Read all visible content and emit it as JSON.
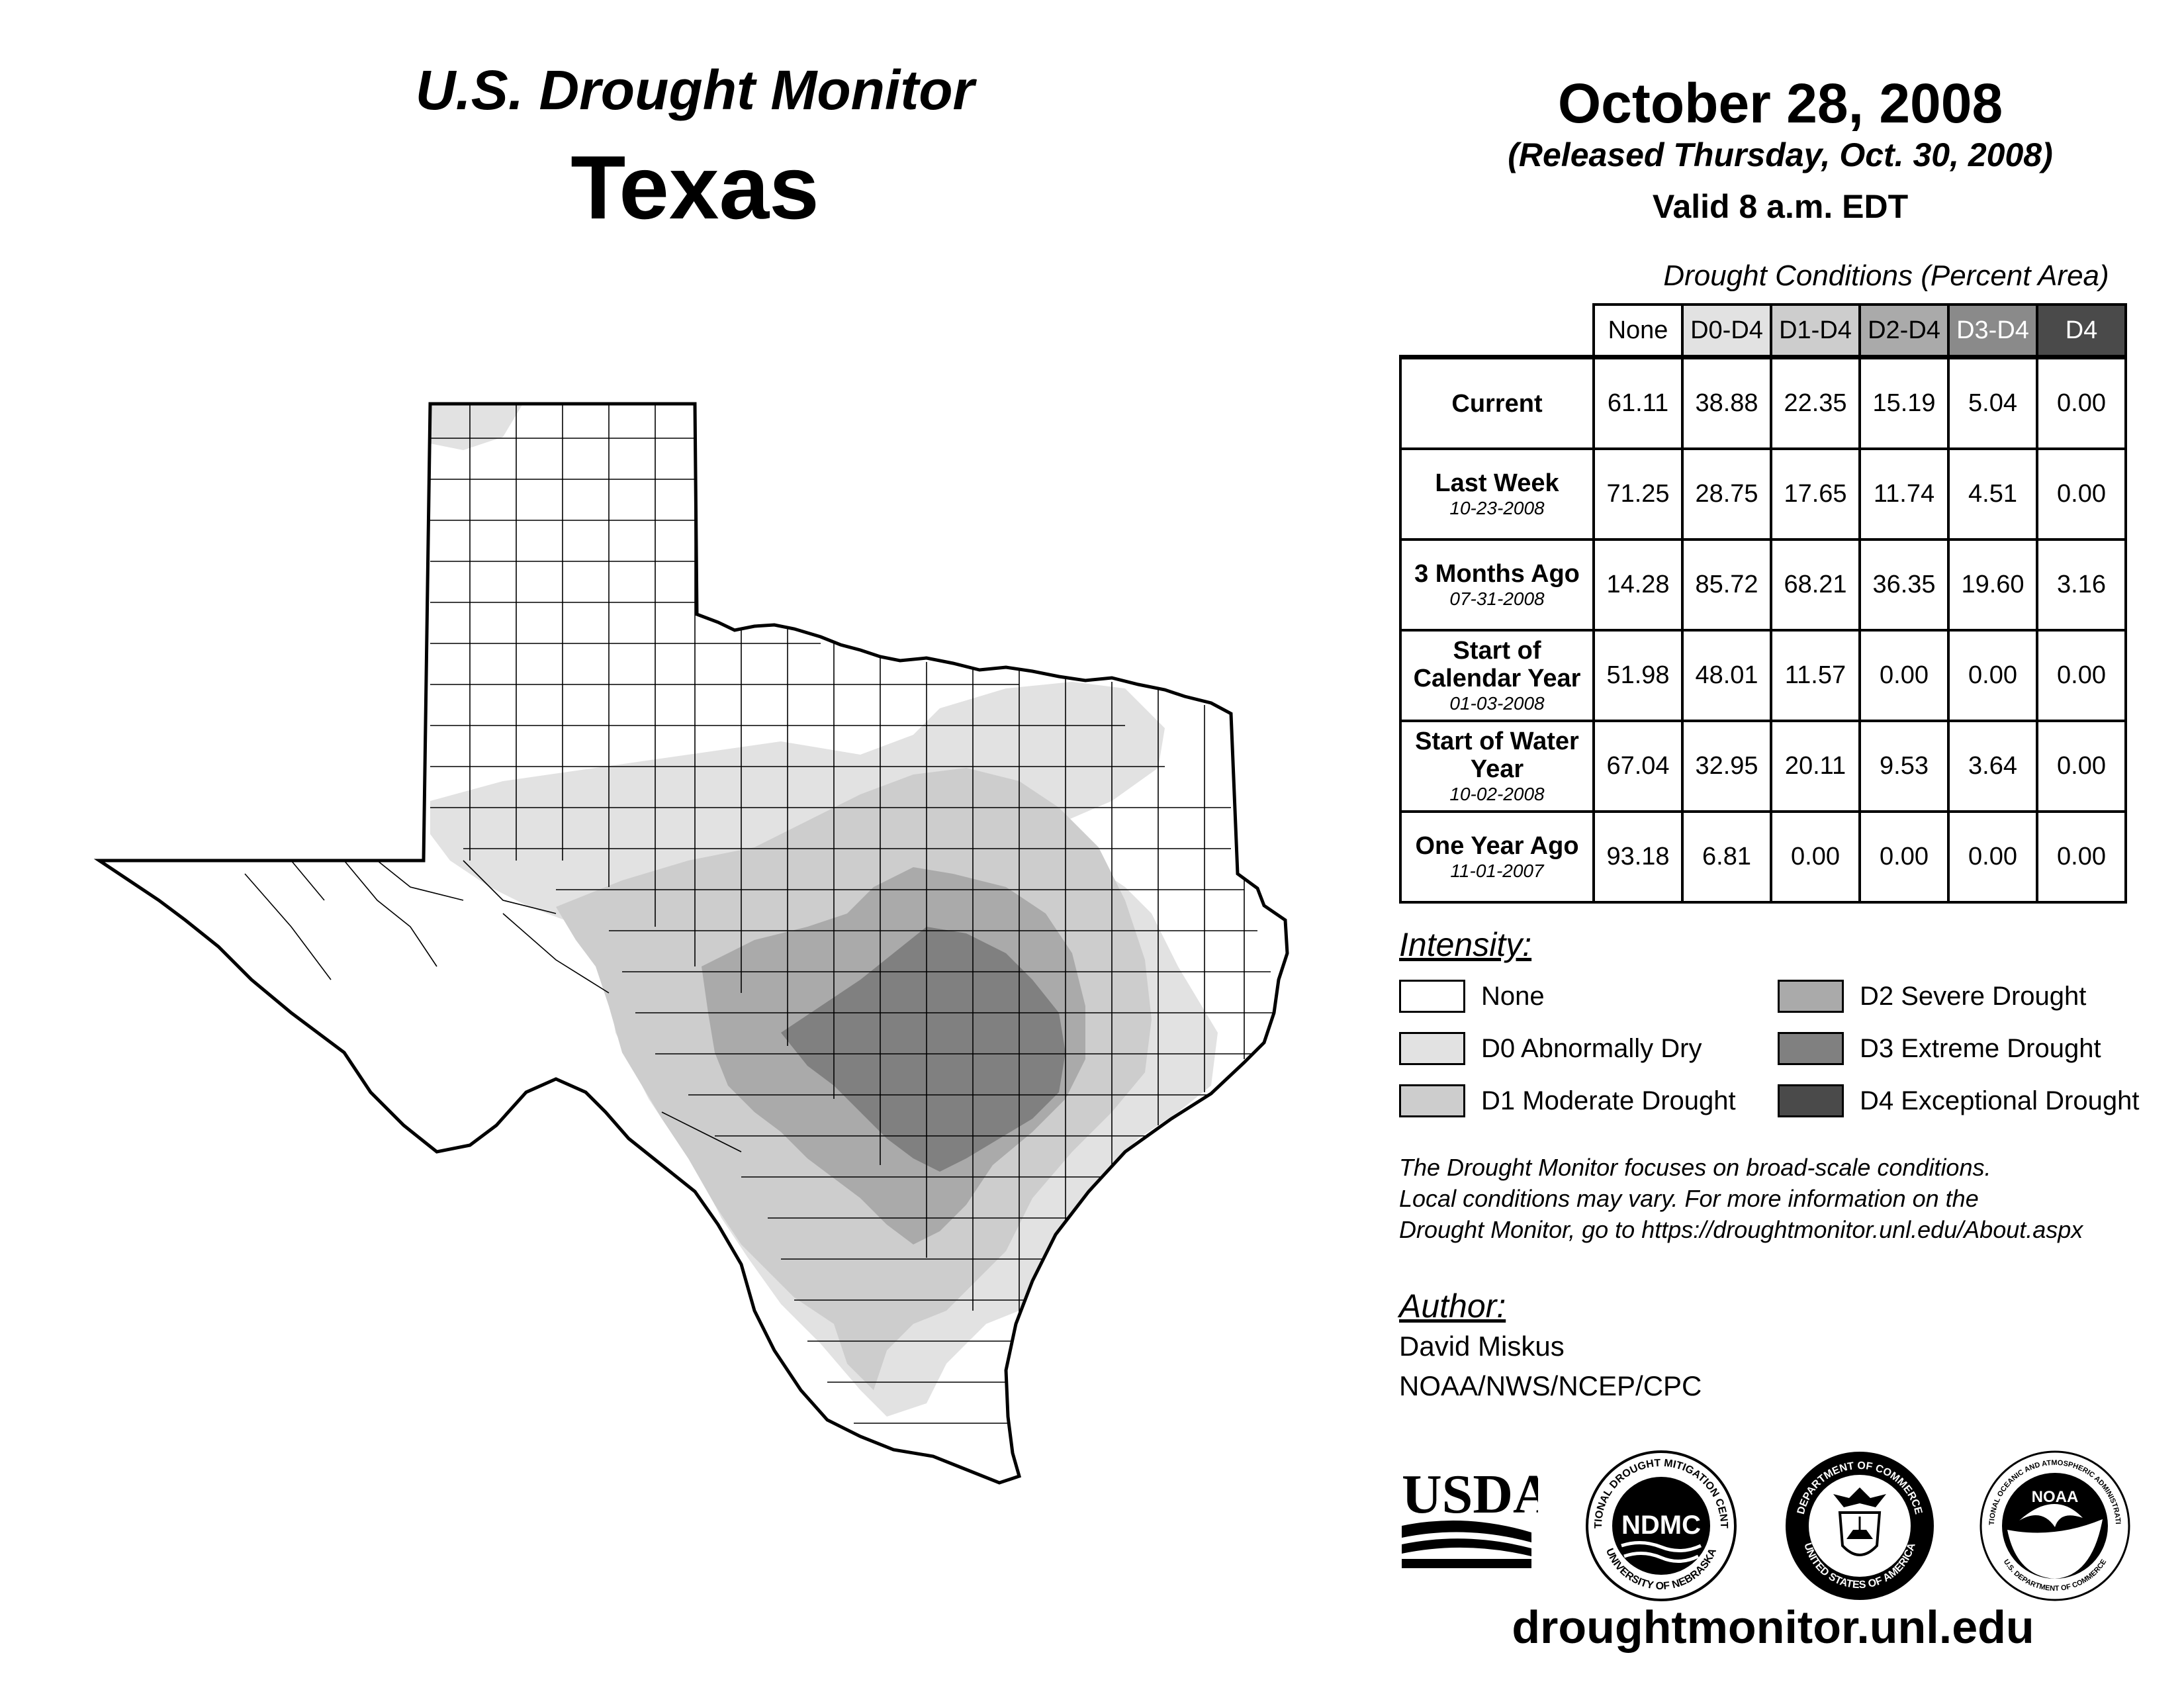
{
  "header": {
    "program": "U.S. Drought Monitor",
    "state": "Texas",
    "date": "October 28, 2008",
    "released": "(Released Thursday, Oct. 30, 2008)",
    "valid": "Valid 8 a.m. EDT"
  },
  "conditions": {
    "title": "Drought Conditions (Percent Area)",
    "columns": [
      "None",
      "D0-D4",
      "D1-D4",
      "D2-D4",
      "D3-D4",
      "D4"
    ],
    "column_colors": [
      "#ffffff",
      "#e2e2e2",
      "#cdcdcd",
      "#aaaaaa",
      "#8a8a8a",
      "#4a4a4a"
    ],
    "column_text_colors": [
      "#000000",
      "#000000",
      "#000000",
      "#000000",
      "#ffffff",
      "#ffffff"
    ],
    "rows": [
      {
        "label": "Current",
        "date": "",
        "values": [
          "61.11",
          "38.88",
          "22.35",
          "15.19",
          "5.04",
          "0.00"
        ]
      },
      {
        "label": "Last Week",
        "date": "10-23-2008",
        "values": [
          "71.25",
          "28.75",
          "17.65",
          "11.74",
          "4.51",
          "0.00"
        ]
      },
      {
        "label": "3 Months Ago",
        "date": "07-31-2008",
        "values": [
          "14.28",
          "85.72",
          "68.21",
          "36.35",
          "19.60",
          "3.16"
        ]
      },
      {
        "label": "Start of Calendar Year",
        "date": "01-03-2008",
        "values": [
          "51.98",
          "48.01",
          "11.57",
          "0.00",
          "0.00",
          "0.00"
        ]
      },
      {
        "label": "Start of Water Year",
        "date": "10-02-2008",
        "values": [
          "67.04",
          "32.95",
          "20.11",
          "9.53",
          "3.64",
          "0.00"
        ]
      },
      {
        "label": "One Year Ago",
        "date": "11-01-2007",
        "values": [
          "93.18",
          "6.81",
          "0.00",
          "0.00",
          "0.00",
          "0.00"
        ]
      }
    ]
  },
  "intensity": {
    "title": "Intensity:",
    "items": [
      {
        "label": "None",
        "color": "#ffffff"
      },
      {
        "label": "D0 Abnormally Dry",
        "color": "#e2e2e2"
      },
      {
        "label": "D1 Moderate Drought",
        "color": "#cdcdcd"
      },
      {
        "label": "D2 Severe Drought",
        "color": "#aaaaaa"
      },
      {
        "label": "D3 Extreme Drought",
        "color": "#808080"
      },
      {
        "label": "D4 Exceptional Drought",
        "color": "#4a4a4a"
      }
    ]
  },
  "note": {
    "line1": "The Drought Monitor focuses on broad-scale conditions.",
    "line2": "Local conditions may vary. For more information on the",
    "line3": "Drought Monitor, go to https://droughtmonitor.unl.edu/About.aspx"
  },
  "author": {
    "title": "Author:",
    "name": "David Miskus",
    "org": "NOAA/NWS/NCEP/CPC"
  },
  "logos": {
    "usda": "USDA",
    "ndmc": "NDMC",
    "ndmc_ring_top": "NATIONAL DROUGHT MITIGATION CENTER",
    "ndmc_ring_bottom": "UNIVERSITY OF NEBRASKA",
    "doc_ring_top": "DEPARTMENT OF COMMERCE",
    "doc_ring_bottom": "UNITED STATES OF AMERICA",
    "noaa": "NOAA",
    "noaa_ring_top": "NATIONAL OCEANIC AND ATMOSPHERIC ADMINISTRATION",
    "noaa_ring_bottom": "U.S. DEPARTMENT OF COMMERCE"
  },
  "footer": {
    "url": "droughtmonitor.unl.edu"
  }
}
